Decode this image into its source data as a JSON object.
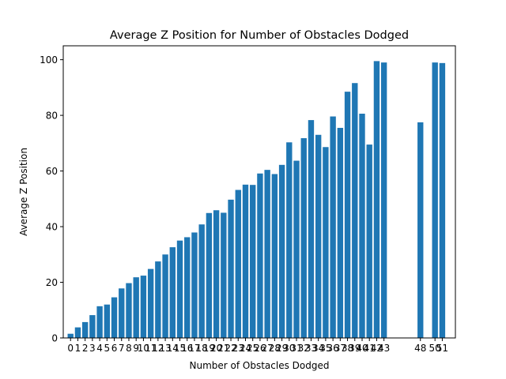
{
  "chart_data": {
    "type": "bar",
    "title": "Average Z Position for Number of Obstacles Dodged",
    "xlabel": "Number of Obstacles Dodged",
    "ylabel": "Average Z Position",
    "x": [
      0,
      1,
      2,
      3,
      4,
      5,
      6,
      7,
      8,
      9,
      10,
      11,
      12,
      13,
      14,
      15,
      16,
      17,
      18,
      19,
      20,
      21,
      22,
      23,
      24,
      25,
      26,
      27,
      28,
      29,
      30,
      31,
      32,
      33,
      34,
      35,
      36,
      37,
      38,
      39,
      40,
      41,
      42,
      43,
      48,
      50,
      51
    ],
    "values": [
      1.5,
      3.8,
      5.7,
      8.2,
      11.4,
      12.0,
      14.6,
      17.8,
      19.7,
      21.8,
      22.4,
      24.8,
      27.5,
      30.0,
      32.6,
      35.0,
      36.2,
      37.9,
      40.8,
      44.9,
      45.9,
      45.0,
      49.7,
      53.2,
      55.1,
      55.0,
      59.1,
      60.4,
      58.9,
      62.2,
      70.3,
      63.7,
      71.8,
      78.3,
      73.0,
      68.6,
      79.6,
      75.5,
      88.5,
      91.6,
      80.6,
      69.5,
      99.5,
      99.0,
      77.5,
      99.0,
      98.8
    ],
    "x_tick_labels": [
      "0",
      "1",
      "2",
      "3",
      "4",
      "5",
      "6",
      "7",
      "8",
      "9",
      "10",
      "11",
      "12",
      "13",
      "14",
      "15",
      "16",
      "17",
      "18",
      "19",
      "20",
      "21",
      "22",
      "23",
      "24",
      "25",
      "26",
      "27",
      "28",
      "29",
      "30",
      "31",
      "32",
      "33",
      "34",
      "35",
      "36",
      "37",
      "38",
      "39",
      "40",
      "41",
      "42",
      "43",
      "48",
      "50",
      "51"
    ],
    "ylim": [
      0,
      105
    ],
    "yticks": [
      0,
      20,
      40,
      60,
      80,
      100
    ],
    "grid": false,
    "bar_color": "#1f77b4"
  }
}
